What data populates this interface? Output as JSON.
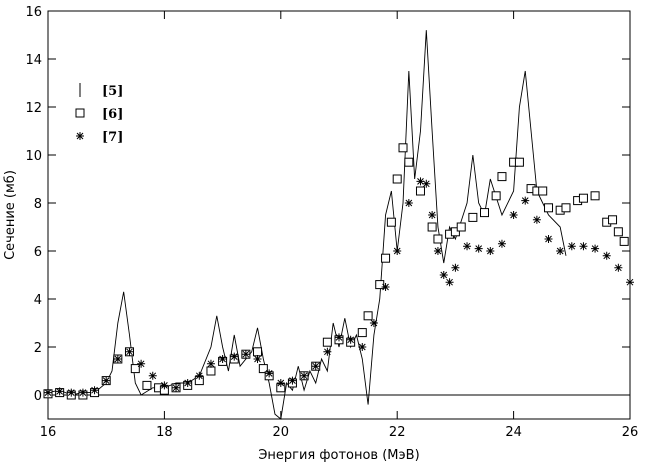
{
  "chart_data": {
    "type": "line",
    "xlabel": "Энергия фотонов (МэВ)",
    "ylabel": "Сечение (мб)",
    "xlim": [
      16,
      26
    ],
    "ylim": [
      -1,
      16
    ],
    "xticks": [
      16,
      18,
      20,
      22,
      24,
      26
    ],
    "yticks": [
      0,
      2,
      4,
      6,
      8,
      10,
      12,
      14,
      16
    ],
    "legend": "upper left",
    "zero_line": true,
    "series": [
      {
        "name": "[5]",
        "color": "#000000",
        "marker": "line",
        "x": [
          16.0,
          16.2,
          16.4,
          16.6,
          16.8,
          17.0,
          17.1,
          17.2,
          17.3,
          17.4,
          17.5,
          17.6,
          17.8,
          18.0,
          18.2,
          18.4,
          18.6,
          18.8,
          18.9,
          19.0,
          19.1,
          19.2,
          19.3,
          19.5,
          19.6,
          19.7,
          19.8,
          19.9,
          20.0,
          20.1,
          20.2,
          20.3,
          20.4,
          20.5,
          20.6,
          20.7,
          20.8,
          20.9,
          21.0,
          21.1,
          21.2,
          21.3,
          21.4,
          21.5,
          21.6,
          21.7,
          21.8,
          21.9,
          22.0,
          22.1,
          22.2,
          22.3,
          22.4,
          22.5,
          22.6,
          22.7,
          22.8,
          22.9,
          23.0,
          23.2,
          23.3,
          23.4,
          23.5,
          23.6,
          23.8,
          24.0,
          24.1,
          24.2,
          24.3,
          24.4,
          24.5,
          24.6,
          24.8,
          24.9
        ],
        "values": [
          0.1,
          0.2,
          0,
          0.1,
          0.1,
          0.5,
          1.0,
          3.0,
          4.3,
          2.5,
          0.5,
          0,
          0.3,
          0.3,
          0.5,
          0.5,
          0.8,
          2.0,
          3.3,
          2.0,
          1.0,
          2.5,
          1.2,
          1.8,
          2.8,
          1.5,
          0.5,
          -0.8,
          -1.0,
          0.5,
          0.2,
          1.2,
          0.2,
          1.0,
          0.5,
          1.5,
          1.0,
          3.0,
          2.0,
          3.2,
          2.0,
          2.5,
          1.5,
          -0.4,
          2.5,
          4.0,
          7.5,
          8.5,
          6.0,
          8.0,
          13.5,
          9.0,
          11.0,
          15.2,
          11.0,
          7.0,
          5.5,
          7.0,
          6.5,
          8.0,
          10.0,
          8.0,
          7.5,
          9.0,
          7.5,
          8.5,
          12.0,
          13.5,
          11.0,
          8.5,
          8.0,
          7.5,
          7.0,
          5.8
        ]
      },
      {
        "name": "[6]",
        "color": "#000000",
        "marker": "square",
        "x": [
          16.0,
          16.2,
          16.4,
          16.6,
          16.8,
          17.0,
          17.2,
          17.4,
          17.5,
          17.7,
          17.9,
          18.0,
          18.2,
          18.4,
          18.6,
          18.8,
          19.0,
          19.2,
          19.4,
          19.6,
          19.7,
          19.8,
          20.0,
          20.2,
          20.4,
          20.6,
          20.8,
          21.0,
          21.2,
          21.4,
          21.5,
          21.7,
          21.8,
          21.9,
          22.0,
          22.1,
          22.2,
          22.4,
          22.6,
          22.7,
          22.9,
          23.0,
          23.1,
          23.3,
          23.5,
          23.7,
          23.8,
          24.0,
          24.1,
          24.3,
          24.4,
          24.5,
          24.6,
          24.8,
          24.9,
          25.1,
          25.2,
          25.4,
          25.6,
          25.7,
          25.8,
          25.9
        ],
        "values": [
          0.05,
          0.1,
          0,
          0,
          0.1,
          0.6,
          1.5,
          1.8,
          1.1,
          0.4,
          0.3,
          0.2,
          0.3,
          0.4,
          0.6,
          1.0,
          1.4,
          1.5,
          1.7,
          1.8,
          1.1,
          0.8,
          0.3,
          0.5,
          0.8,
          1.2,
          2.2,
          2.3,
          2.2,
          2.6,
          3.3,
          4.6,
          5.7,
          7.2,
          9.0,
          10.3,
          9.7,
          8.5,
          7.0,
          6.5,
          6.7,
          6.8,
          7.0,
          7.4,
          7.6,
          8.3,
          9.1,
          9.7,
          9.7,
          8.6,
          8.5,
          8.5,
          7.8,
          7.7,
          7.8,
          8.1,
          8.2,
          8.3,
          7.2,
          7.3,
          6.8,
          6.4
        ]
      },
      {
        "name": "[7]",
        "color": "#000000",
        "marker": "asterisk",
        "x": [
          16.0,
          16.2,
          16.4,
          16.6,
          16.8,
          17.0,
          17.2,
          17.4,
          17.6,
          17.8,
          18.0,
          18.2,
          18.4,
          18.6,
          18.8,
          19.0,
          19.2,
          19.4,
          19.6,
          19.8,
          20.0,
          20.2,
          20.4,
          20.6,
          20.8,
          21.0,
          21.2,
          21.4,
          21.6,
          21.8,
          22.0,
          22.2,
          22.4,
          22.5,
          22.6,
          22.7,
          22.8,
          22.9,
          23.0,
          23.2,
          23.4,
          23.6,
          23.8,
          24.0,
          24.2,
          24.4,
          24.6,
          24.8,
          25.0,
          25.2,
          25.4,
          25.6,
          25.8,
          26.0
        ],
        "values": [
          0.1,
          0.15,
          0.1,
          0.1,
          0.2,
          0.6,
          1.5,
          1.8,
          1.3,
          0.8,
          0.4,
          0.3,
          0.5,
          0.8,
          1.3,
          1.5,
          1.6,
          1.7,
          1.5,
          0.9,
          0.5,
          0.6,
          0.8,
          1.2,
          1.8,
          2.4,
          2.3,
          2.0,
          3.0,
          4.5,
          6.0,
          8.0,
          8.9,
          8.8,
          7.5,
          6.0,
          5.0,
          4.7,
          5.3,
          6.2,
          6.1,
          6.0,
          6.3,
          7.5,
          8.1,
          7.3,
          6.5,
          6.0,
          6.2,
          6.2,
          6.1,
          5.8,
          5.3,
          4.7
        ]
      }
    ]
  }
}
